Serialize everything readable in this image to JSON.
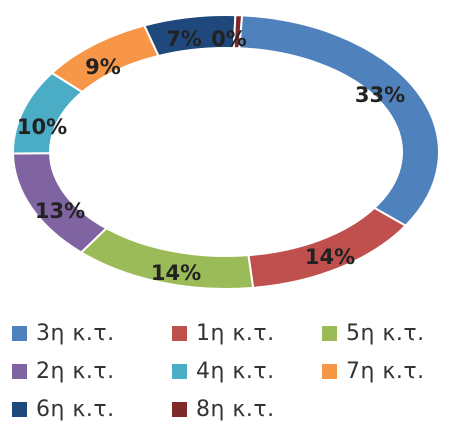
{
  "chart_data": {
    "type": "pie",
    "donut": true,
    "categories": [
      "3η κ.τ.",
      "1η κ.τ.",
      "5η κ.τ.",
      "2η κ.τ.",
      "4η κ.τ.",
      "7η κ.τ.",
      "6η κ.τ.",
      "8η κ.τ."
    ],
    "values": [
      33,
      14,
      14,
      13,
      10,
      9,
      7,
      0.5
    ],
    "data_labels": [
      "33%",
      "14%",
      "14%",
      "13%",
      "10%",
      "9%",
      "7%",
      "0%"
    ],
    "colors": [
      "#4f81bd",
      "#c0504d",
      "#9bbb59",
      "#8064a2",
      "#4bacc6",
      "#f79646",
      "#1f497d",
      "#7f2a2a"
    ],
    "legend_position": "bottom",
    "title": ""
  }
}
